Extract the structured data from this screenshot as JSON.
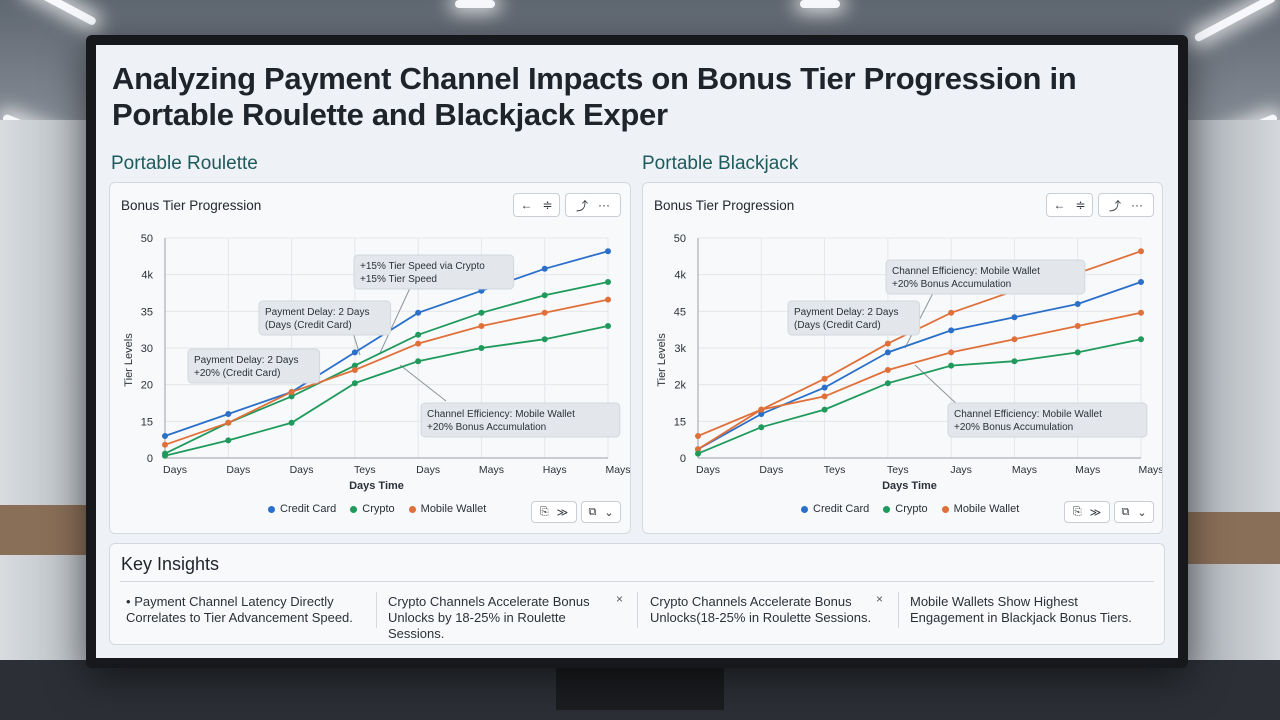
{
  "title": "Analyzing Payment Channel Impacts on Bonus Tier Progression in Portable Roulette and Blackjack Exper",
  "colors": {
    "credit_card": "#2a6fc9",
    "crypto": "#1f9a5c",
    "mobile_wallet": "#e0703a",
    "accent": "#1e5b5c"
  },
  "roulette": {
    "section_title": "Portable Roulette",
    "panel_title": "Bonus Tier Progression",
    "toolbar": {
      "prev": "←",
      "next": "≑",
      "share": "⤴",
      "more": "···"
    },
    "bottom_buttons": {
      "b1": "⎘",
      "b2": "≫",
      "b3": "⧉",
      "b4": "⌄"
    },
    "legend": [
      "Credit Card",
      "Crypto",
      "Mobile Wallet"
    ],
    "annotations": [
      {
        "lines": [
          "+15% Tier Speed via Crypto",
          "+15% Tier Speed"
        ]
      },
      {
        "lines": [
          "Payment Delay: 2 Days",
          "(Days (Credit Card)"
        ]
      },
      {
        "lines": [
          "Payment Delay: 2 Days",
          "+20% (Credit Card)"
        ]
      },
      {
        "lines": [
          "Channel Efficiency: Mobile Wallet",
          "+20% Bonus Accumulation"
        ]
      }
    ]
  },
  "blackjack": {
    "section_title": "Portable Blackjack",
    "panel_title": "Bonus Tier Progression",
    "toolbar": {
      "prev": "←",
      "next": "≑",
      "share": "⤴",
      "more": "···"
    },
    "bottom_buttons": {
      "b1": "⎘",
      "b2": "≫",
      "b3": "⧉",
      "b4": "⌄"
    },
    "legend": [
      "Credit Card",
      "Crypto",
      "Mobile Wallet"
    ],
    "annotations": [
      {
        "lines": [
          "Channel Efficiency: Mobile Wallet",
          "+20% Bonus Accumulation"
        ]
      },
      {
        "lines": [
          "Payment Delay: 2 Days",
          "(Days (Credit Card)"
        ]
      },
      {
        "lines": [
          "Channel Efficiency: Mobile Wallet",
          "+20% Bonus Accumulation"
        ]
      }
    ]
  },
  "insights": {
    "title": "Key Insights",
    "items": [
      {
        "bullet": "•",
        "text": "Payment Channel Latency Directly Correlates to Tier Advancement Speed."
      },
      {
        "text": "Crypto Channels Accelerate Bonus Unlocks by 18-25% in Roulette Sessions.",
        "close": "×"
      },
      {
        "text": "Crypto Channels Accelerate Bonus Unlocks(18-25% in Roulette Sessions.",
        "close": "×"
      },
      {
        "text": "Mobile Wallets Show Highest Engagement in Blackjack Bonus Tiers."
      }
    ]
  },
  "chart_data": [
    {
      "type": "line",
      "title": "Bonus Tier Progression",
      "xlabel": "Days Time",
      "ylabel": "Tier Levels",
      "yticks": [
        "50",
        "4k",
        "35",
        "30",
        "20",
        "15",
        "0"
      ],
      "x": [
        "Days",
        "Days",
        "Days",
        "Teys",
        "Days",
        "Mays",
        "Hays",
        "Mays"
      ],
      "ylim": [
        0,
        50
      ],
      "grid": true,
      "legend_position": "bottom",
      "series": [
        {
          "name": "Credit Card",
          "values": [
            5,
            10,
            15,
            24,
            33,
            38,
            43,
            47
          ]
        },
        {
          "name": "Crypto",
          "values": [
            1,
            8,
            14,
            21,
            28,
            33,
            37,
            40
          ]
        },
        {
          "name": "Mobile Wallet",
          "values": [
            3,
            8,
            15,
            20,
            26,
            30,
            33,
            36
          ]
        },
        {
          "name": "Crypto",
          "values": [
            0.5,
            4,
            8,
            17,
            22,
            25,
            27,
            30
          ]
        }
      ]
    },
    {
      "type": "line",
      "title": "Bonus Tier Progression",
      "xlabel": "Days Time",
      "ylabel": "Tier Levels",
      "yticks": [
        "50",
        "4k",
        "45",
        "3k",
        "2k",
        "15",
        "0"
      ],
      "x": [
        "Days",
        "Days",
        "Teys",
        "Teys",
        "Jays",
        "Mays",
        "Mays",
        "Mays"
      ],
      "ylim": [
        0,
        50
      ],
      "grid": true,
      "legend_position": "bottom",
      "series": [
        {
          "name": "Mobile Wallet",
          "values": [
            5,
            11,
            18,
            26,
            33,
            38,
            42,
            47
          ]
        },
        {
          "name": "Credit Card",
          "values": [
            2,
            10,
            16,
            24,
            29,
            32,
            35,
            40
          ]
        },
        {
          "name": "Mobile Wallet",
          "values": [
            2,
            11,
            14,
            20,
            24,
            27,
            30,
            33
          ]
        },
        {
          "name": "Crypto",
          "values": [
            1,
            7,
            11,
            17,
            21,
            22,
            24,
            27
          ]
        }
      ]
    }
  ]
}
